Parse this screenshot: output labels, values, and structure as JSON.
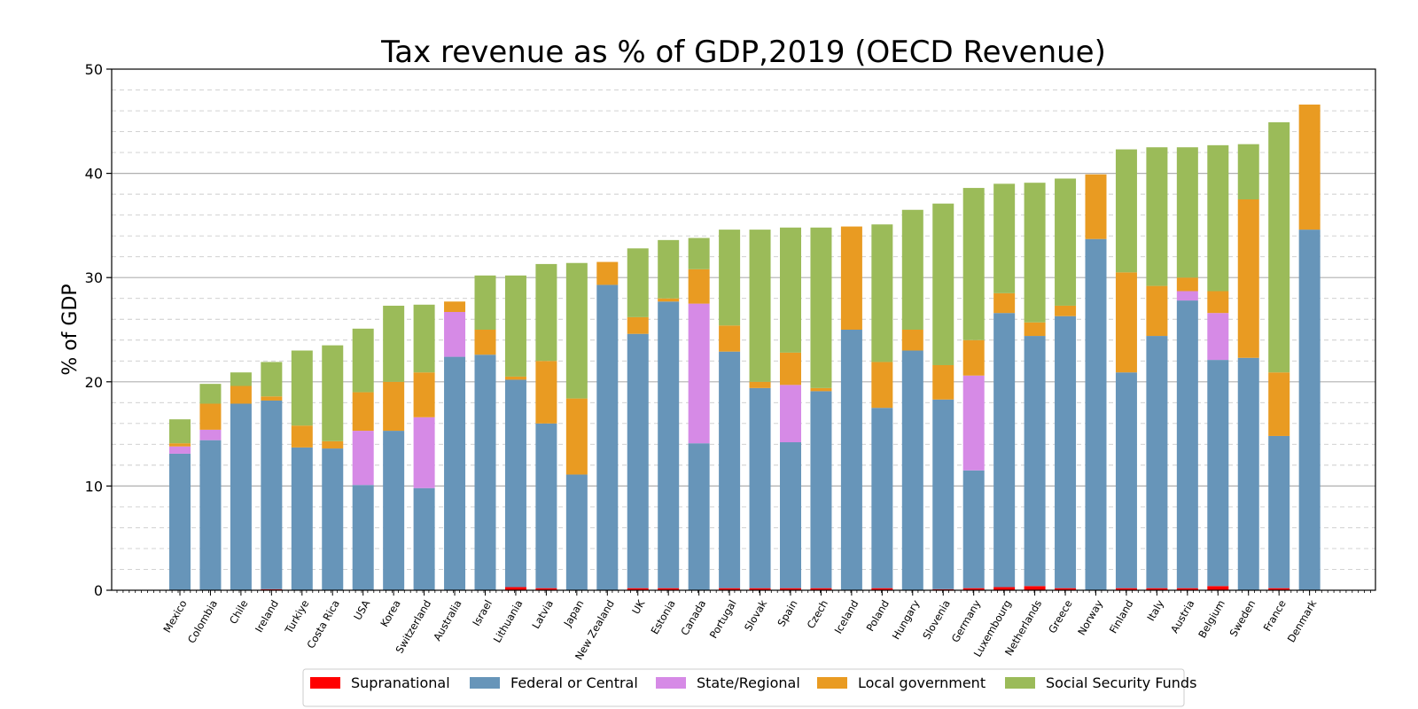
{
  "chart_data": {
    "type": "bar",
    "stacked": true,
    "title": "Tax revenue as % of GDP,2019 (OECD Revenue)",
    "xlabel": "",
    "ylabel": "% of GDP",
    "ylim": [
      0,
      50
    ],
    "yticks": [
      "0",
      "10",
      "20",
      "30",
      "40",
      "50"
    ],
    "grid": true,
    "legend_position": "bottom",
    "categories": [
      "Mexico",
      "Colombia",
      "Chile",
      "Ireland",
      "Turkiye",
      "Costa Rica",
      "USA",
      "Korea",
      "Switzerland",
      "Australia",
      "Israel",
      "Lithuania",
      "Latvia",
      "Japan",
      "New Zealand",
      "UK",
      "Estonia",
      "Canada",
      "Portugal",
      "Slovak",
      "Spain",
      "Czech",
      "Iceland",
      "Poland",
      "Hungary",
      "Slovenia",
      "Germany",
      "Luxembourg",
      "Netherlands",
      "Greece",
      "Norway",
      "Finland",
      "Italy",
      "Austria",
      "Belgium",
      "Sweden",
      "France",
      "Denmark"
    ],
    "series": [
      {
        "name": "Supranational",
        "color": "#ff0000",
        "values": [
          0,
          0,
          0,
          0.1,
          0,
          0,
          0,
          0,
          0,
          0,
          0,
          0.3,
          0.2,
          0,
          0,
          0.2,
          0.2,
          0,
          0.2,
          0.2,
          0.2,
          0.2,
          0,
          0.2,
          0,
          0.1,
          0.2,
          0.3,
          0.4,
          0.2,
          0,
          0.2,
          0.2,
          0.2,
          0.4,
          0,
          0.2,
          0
        ]
      },
      {
        "name": "Federal or Central",
        "color": "#6795b9",
        "values": [
          13.1,
          14.4,
          17.9,
          18.1,
          13.7,
          13.6,
          10.1,
          15.3,
          9.8,
          22.4,
          22.6,
          19.9,
          15.8,
          11.1,
          29.3,
          24.4,
          27.5,
          14.1,
          22.7,
          19.2,
          14.0,
          18.9,
          25.0,
          17.3,
          23.0,
          18.2,
          11.3,
          26.3,
          24.0,
          26.1,
          33.7,
          20.7,
          24.2,
          27.6,
          21.7,
          22.3,
          14.6,
          34.6
        ]
      },
      {
        "name": "State/Regional",
        "color": "#d68ae6",
        "values": [
          0.7,
          1.0,
          0,
          0,
          0,
          0,
          5.2,
          0,
          6.8,
          4.3,
          0,
          0,
          0,
          0,
          0,
          0,
          0,
          13.4,
          0,
          0,
          5.5,
          0,
          0,
          0,
          0,
          0,
          9.1,
          0,
          0,
          0,
          0,
          0,
          0,
          0.9,
          4.5,
          0,
          0,
          0
        ]
      },
      {
        "name": "Local government",
        "color": "#e99b22",
        "values": [
          0.3,
          2.5,
          1.7,
          0.4,
          2.1,
          0.7,
          3.7,
          4.7,
          4.3,
          1.0,
          2.4,
          0.3,
          6.0,
          7.3,
          2.2,
          1.6,
          0.3,
          3.3,
          2.5,
          0.6,
          3.1,
          0.3,
          9.9,
          4.4,
          2.0,
          3.3,
          3.4,
          1.9,
          1.3,
          1.0,
          6.2,
          9.6,
          4.8,
          1.3,
          2.1,
          15.2,
          6.1,
          12.0
        ]
      },
      {
        "name": "Social Security Funds",
        "color": "#9bbb59",
        "values": [
          2.3,
          1.9,
          1.3,
          3.3,
          7.2,
          9.2,
          6.1,
          7.3,
          6.5,
          0,
          5.2,
          9.7,
          9.3,
          13.0,
          0,
          6.6,
          5.6,
          3.0,
          9.2,
          14.6,
          12.0,
          15.4,
          0,
          13.2,
          11.5,
          15.5,
          14.6,
          10.5,
          13.4,
          12.2,
          0,
          11.8,
          13.3,
          12.5,
          14.0,
          5.3,
          24.0,
          0
        ]
      }
    ]
  }
}
